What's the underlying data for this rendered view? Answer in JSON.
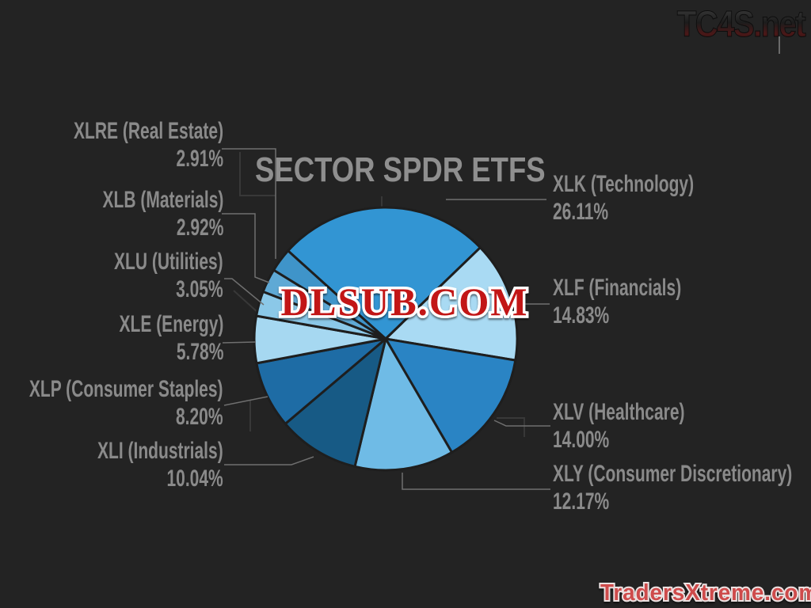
{
  "title": "SECTOR SPDR ETFS",
  "watermarks": {
    "top_right": "TC4S.net",
    "center": "DLSUB.COM",
    "bottom_right": "TradersXtreme.com"
  },
  "colors": {
    "background": "#232323",
    "label_text": "#8a8a8a",
    "title_text": "#8f8f8f",
    "leader_line": "#6f6f6f",
    "slice_border": "#1e1e1e",
    "circuit_trace": "#383838",
    "dlsub_red": "#c21717",
    "traders_red": "#ce4b4b",
    "watermark_outline": "#ffffff"
  },
  "chart_data": {
    "type": "pie",
    "title": "SECTOR SPDR ETFS",
    "legend_position": "labels-around",
    "grid": false,
    "start_angle_deg": -48,
    "direction": "clockwise",
    "slices": [
      {
        "ticker": "XLK",
        "sector": "Technology",
        "label": "XLK (Technology)",
        "value": 26.11,
        "pct_label": "26.11%",
        "color": "#3295d3"
      },
      {
        "ticker": "XLF",
        "sector": "Financials",
        "label": "XLF (Financials)",
        "value": 14.83,
        "pct_label": "14.83%",
        "color": "#a9daf3"
      },
      {
        "ticker": "XLV",
        "sector": "Healthcare",
        "label": "XLV (Healthcare)",
        "value": 14.0,
        "pct_label": "14.00%",
        "color": "#2a84c4"
      },
      {
        "ticker": "XLY",
        "sector": "Consumer Discretionary",
        "label": "XLY (Consumer Discretionary)",
        "value": 12.17,
        "pct_label": "12.17%",
        "color": "#6fbbe6"
      },
      {
        "ticker": "XLI",
        "sector": "Industrials",
        "label": "XLI (Industrials)",
        "value": 10.04,
        "pct_label": "10.04%",
        "color": "#175a85"
      },
      {
        "ticker": "XLP",
        "sector": "Consumer Staples",
        "label": "XLP (Consumer Staples)",
        "value": 8.2,
        "pct_label": "8.20%",
        "color": "#1e6ca5"
      },
      {
        "ticker": "XLE",
        "sector": "Energy",
        "label": "XLE (Energy)",
        "value": 5.78,
        "pct_label": "5.78%",
        "color": "#a6d8f1"
      },
      {
        "ticker": "XLU",
        "sector": "Utilities",
        "label": "XLU (Utilities)",
        "value": 3.05,
        "pct_label": "3.05%",
        "color": "#8bc8e8"
      },
      {
        "ticker": "XLB",
        "sector": "Materials",
        "label": "XLB (Materials)",
        "value": 2.92,
        "pct_label": "2.92%",
        "color": "#5fa9d5"
      },
      {
        "ticker": "XLRE",
        "sector": "Real Estate",
        "label": "XLRE (Real Estate)",
        "value": 2.91,
        "pct_label": "2.91%",
        "color": "#3f94c9"
      }
    ]
  }
}
